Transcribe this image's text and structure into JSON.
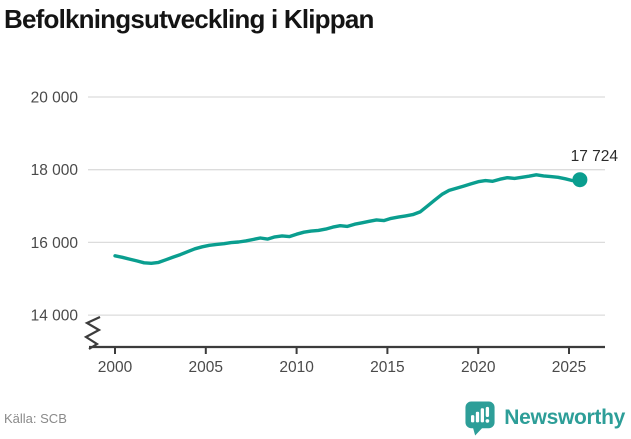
{
  "title": "Befolkningsutveckling i Klippan",
  "source": "Källa: SCB",
  "brand": {
    "name": "Newsworthy",
    "color": "#2d9e98"
  },
  "colors": {
    "line": "#0a9e8f",
    "grid": "#dcdcdc",
    "axis": "#3c3c3c",
    "tick_text": "#4a4a4a",
    "title_text": "#141414",
    "value_label_text": "#2b2b2b",
    "source_text": "#8a8a8a"
  },
  "chart_data": {
    "type": "line",
    "title": "Befolkningsutveckling i Klippan",
    "source_label": "Källa: SCB",
    "xlabel": "",
    "ylabel": "",
    "grid": "horizontal",
    "legend": "none",
    "axis_break_bottom_left": true,
    "xlim": [
      1998.5,
      2027
    ],
    "ylim": [
      13600,
      20600
    ],
    "xticks": [
      2000,
      2005,
      2010,
      2015,
      2020,
      2025
    ],
    "xtick_labels": [
      "2000",
      "2005",
      "2010",
      "2015",
      "2020",
      "2025"
    ],
    "yticks": [
      14000,
      16000,
      18000,
      20000
    ],
    "ytick_labels": [
      "14 000",
      "16 000",
      "18 000",
      "20 000"
    ],
    "series_name": "Befolkning",
    "x": [
      2000.0,
      2000.4,
      2000.8,
      2001.2,
      2001.6,
      2002.0,
      2002.4,
      2002.8,
      2003.2,
      2003.6,
      2004.0,
      2004.4,
      2004.8,
      2005.2,
      2005.6,
      2006.0,
      2006.4,
      2006.8,
      2007.2,
      2007.6,
      2008.0,
      2008.4,
      2008.8,
      2009.2,
      2009.6,
      2010.0,
      2010.4,
      2010.8,
      2011.2,
      2011.6,
      2012.0,
      2012.4,
      2012.8,
      2013.2,
      2013.6,
      2014.0,
      2014.4,
      2014.8,
      2015.2,
      2015.6,
      2016.0,
      2016.4,
      2016.8,
      2017.2,
      2017.6,
      2018.0,
      2018.4,
      2018.8,
      2019.2,
      2019.6,
      2020.0,
      2020.4,
      2020.8,
      2021.2,
      2021.6,
      2022.0,
      2022.4,
      2022.8,
      2023.2,
      2023.6,
      2024.0,
      2024.4,
      2024.8,
      2025.2,
      2025.6
    ],
    "values": [
      15630,
      15590,
      15540,
      15490,
      15440,
      15425,
      15450,
      15520,
      15595,
      15665,
      15745,
      15825,
      15880,
      15920,
      15945,
      15965,
      15995,
      16010,
      16040,
      16080,
      16120,
      16090,
      16150,
      16180,
      16160,
      16225,
      16280,
      16310,
      16330,
      16365,
      16420,
      16460,
      16440,
      16500,
      16540,
      16580,
      16620,
      16600,
      16660,
      16695,
      16730,
      16765,
      16840,
      17000,
      17160,
      17320,
      17430,
      17490,
      17550,
      17610,
      17670,
      17700,
      17680,
      17740,
      17780,
      17760,
      17790,
      17820,
      17860,
      17830,
      17810,
      17790,
      17750,
      17700,
      17724
    ],
    "last_point": {
      "x": 2025.6,
      "value": 17724,
      "label": "17 724"
    }
  }
}
